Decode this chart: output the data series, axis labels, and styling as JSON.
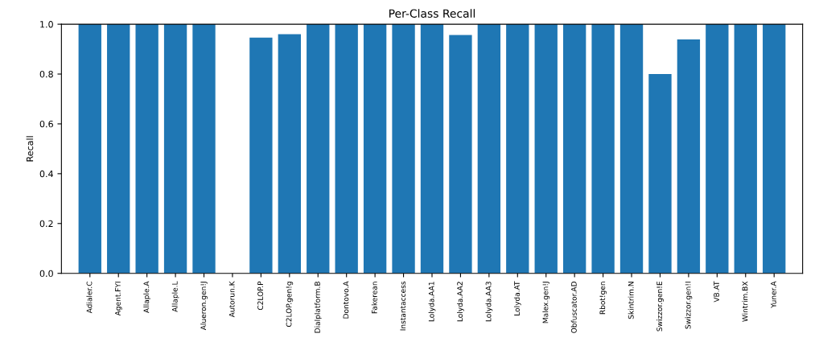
{
  "chart_data": {
    "type": "bar",
    "title": "Per-Class Recall",
    "ylabel": "Recall",
    "categories": [
      "Adialer.C",
      "Agent.FYI",
      "Allaple.A",
      "Allaple.L",
      "Alueron.gen!J",
      "Autorun.K",
      "C2LOP.P",
      "C2LOP.gen!g",
      "Dialplatform.B",
      "Dontovo.A",
      "Fakerean",
      "Instantaccess",
      "Lolyda.AA1",
      "Lolyda.AA2",
      "Lolyda.AA3",
      "Lolyda.AT",
      "Malex.gen!J",
      "Obfuscator.AD",
      "Rbot!gen",
      "Skintrim.N",
      "Swizzor.gen!E",
      "Swizzor.gen!I",
      "VB.AT",
      "Wintrim.BX",
      "Yuner.A"
    ],
    "values": [
      1,
      1,
      1,
      1,
      1,
      0,
      0.946,
      0.96,
      1,
      1,
      1,
      1,
      1,
      0.957,
      1,
      1,
      1,
      1,
      1,
      1,
      0.8,
      0.939,
      1,
      1,
      1
    ],
    "color": "#1f77b4",
    "ylim": [
      0,
      1
    ],
    "yticks": [
      {
        "value": 0,
        "label": "0.0"
      },
      0.2,
      0.4,
      0.6,
      0.8,
      {
        "value": 1,
        "label": "1.0"
      }
    ]
  }
}
